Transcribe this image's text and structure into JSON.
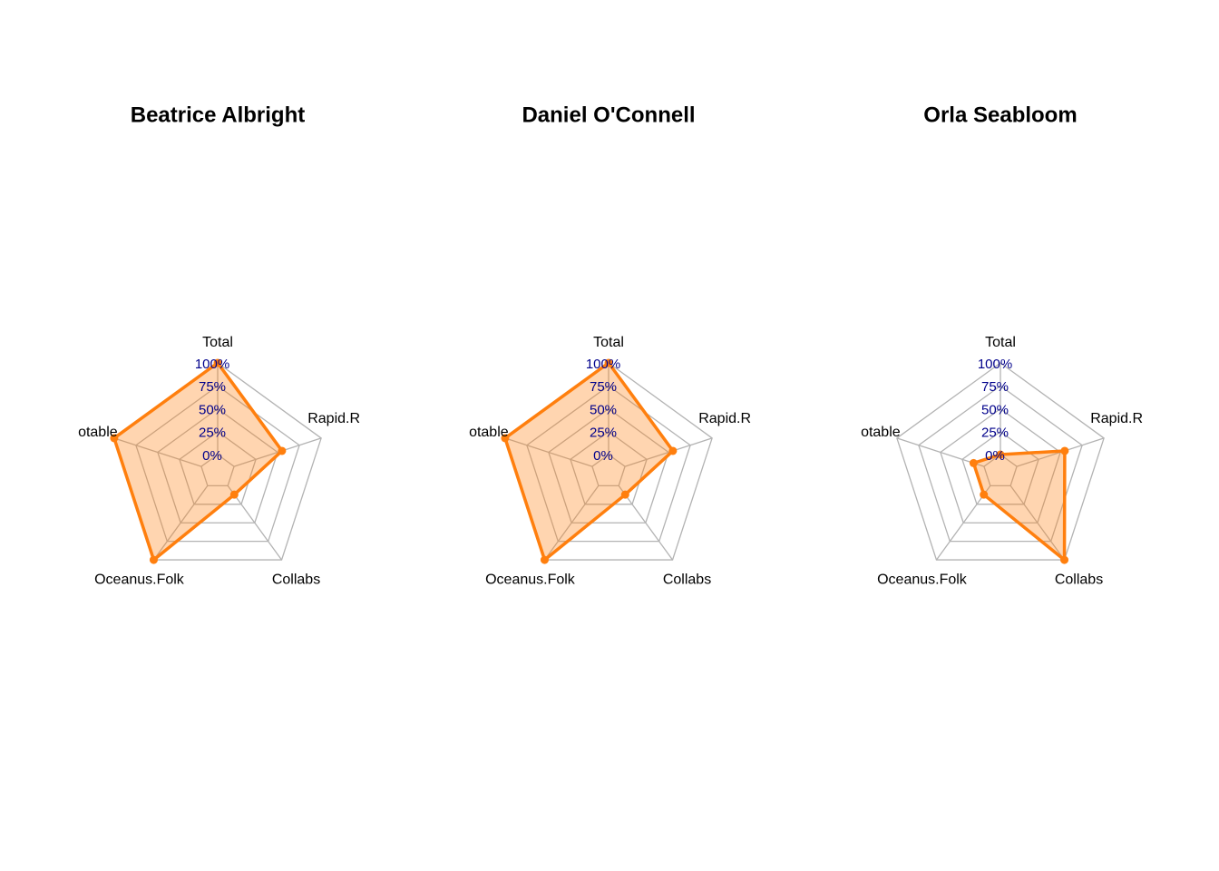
{
  "chart_data": [
    {
      "type": "radar",
      "title": "Beatrice Albright",
      "axes": [
        "Total",
        "Rapid.R",
        "Collabs",
        "Oceanus.Folk",
        "otable"
      ],
      "tick_labels": [
        "0%",
        "25%",
        "50%",
        "75%",
        "100%"
      ],
      "range": [
        0,
        1
      ],
      "values": [
        1.0,
        0.55,
        0.12,
        1.0,
        1.0
      ],
      "grid": true,
      "colors": {
        "series": "#ff7f0e",
        "grid": "#b3b3b3",
        "ticks": "#00008b"
      }
    },
    {
      "type": "radar",
      "title": "Daniel O'Connell",
      "axes": [
        "Total",
        "Rapid.R",
        "Collabs",
        "Oceanus.Folk",
        "otable"
      ],
      "tick_labels": [
        "0%",
        "25%",
        "50%",
        "75%",
        "100%"
      ],
      "range": [
        0,
        1
      ],
      "values": [
        1.0,
        0.55,
        0.12,
        1.0,
        1.0
      ],
      "grid": true,
      "colors": {
        "series": "#ff7f0e",
        "grid": "#b3b3b3",
        "ticks": "#00008b"
      }
    },
    {
      "type": "radar",
      "title": "Orla Seabloom",
      "axes": [
        "Total",
        "Rapid.R",
        "Collabs",
        "Oceanus.Folk",
        "otable"
      ],
      "tick_labels": [
        "0%",
        "25%",
        "50%",
        "75%",
        "100%"
      ],
      "range": [
        0,
        1
      ],
      "values": [
        0.0,
        0.55,
        1.0,
        0.12,
        0.12
      ],
      "grid": true,
      "colors": {
        "series": "#ff7f0e",
        "grid": "#b3b3b3",
        "ticks": "#00008b"
      }
    }
  ]
}
